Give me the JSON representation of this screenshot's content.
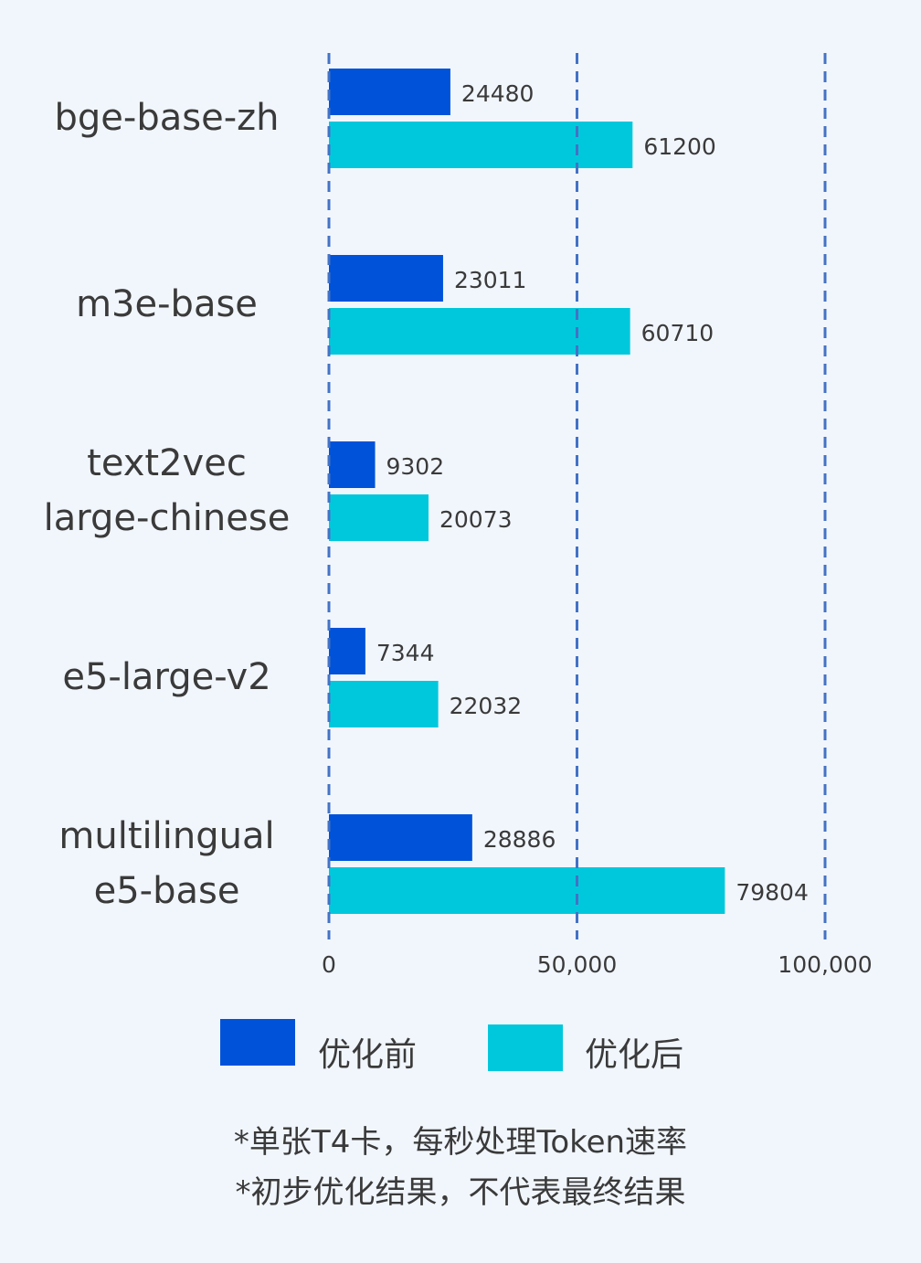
{
  "chart_data": {
    "type": "bar",
    "orientation": "horizontal",
    "categories": [
      [
        "bge-base-zh"
      ],
      [
        "m3e-base"
      ],
      [
        "text2vec",
        "large-chinese"
      ],
      [
        "e5-large-v2"
      ],
      [
        "multilingual",
        "e5-base"
      ]
    ],
    "series": [
      {
        "name": "优化前",
        "color": "#0052d9",
        "values": [
          24480,
          23011,
          9302,
          7344,
          28886
        ]
      },
      {
        "name": "优化后",
        "color": "#00c8dc",
        "values": [
          61200,
          60710,
          20073,
          22032,
          79804
        ]
      }
    ],
    "xlim": [
      0,
      100000
    ],
    "x_ticks": [
      0,
      50000,
      100000
    ],
    "x_tick_labels": [
      "0",
      "50,000",
      "100,000"
    ],
    "grid": "vertical dashed",
    "grid_color": "#4472c4",
    "legend": "bottom"
  },
  "notes": [
    "*单张T4卡，每秒处理Token速率",
    "*初步优化结果，不代表最终结果"
  ]
}
